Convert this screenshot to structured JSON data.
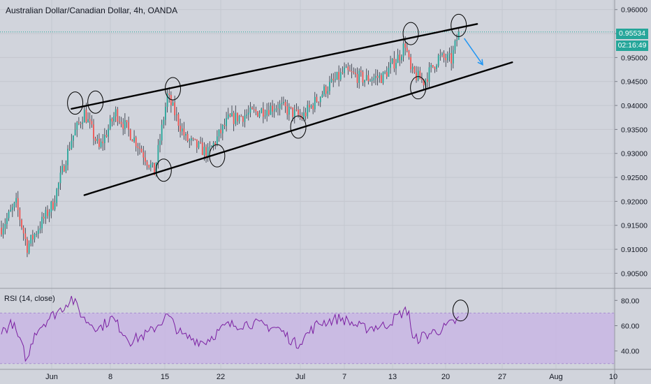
{
  "header": {
    "title": "Australian Dollar/Canadian Dollar, 4h, OANDA"
  },
  "price_badge": {
    "value": "0.95534",
    "color": "#26a69a"
  },
  "countdown_badge": {
    "value": "02:16:49",
    "color": "#26a69a"
  },
  "rsi_panel": {
    "title": "RSI (14, close)"
  },
  "colors": {
    "background": "#d1d4dc",
    "up_candle": "#26a69a",
    "down_candle": "#ef5350",
    "rsi_line": "#7b1fa2",
    "rsi_band": "#c9b6e4",
    "annotation": "#000000",
    "arrow": "#2196f3"
  },
  "chart_data": [
    {
      "type": "candlestick",
      "title": "Australian Dollar/Canadian Dollar, 4h, OANDA",
      "y_ticks": [
        "0.96000",
        "0.95500",
        "0.95000",
        "0.94500",
        "0.94000",
        "0.93500",
        "0.93000",
        "0.92500",
        "0.92000",
        "0.91500",
        "0.91000",
        "0.90500"
      ],
      "ylim": [
        0.902,
        0.962
      ],
      "x_ticks": [
        "Jun",
        "8",
        "15",
        "22",
        "Jul",
        "7",
        "13",
        "20",
        "27",
        "Aug",
        "10"
      ],
      "last_price": 0.95534,
      "grid": true,
      "anchors": [
        {
          "bar": 0,
          "close": 0.9145
        },
        {
          "bar": 8,
          "close": 0.9195
        },
        {
          "bar": 14,
          "close": 0.9105
        },
        {
          "bar": 20,
          "close": 0.9145
        },
        {
          "bar": 28,
          "close": 0.9195
        },
        {
          "bar": 38,
          "close": 0.933
        },
        {
          "bar": 45,
          "close": 0.9385
        },
        {
          "bar": 53,
          "close": 0.931
        },
        {
          "bar": 62,
          "close": 0.9385
        },
        {
          "bar": 73,
          "close": 0.9325
        },
        {
          "bar": 83,
          "close": 0.926
        },
        {
          "bar": 90,
          "close": 0.942
        },
        {
          "bar": 100,
          "close": 0.933
        },
        {
          "bar": 112,
          "close": 0.93
        },
        {
          "bar": 123,
          "close": 0.937
        },
        {
          "bar": 137,
          "close": 0.9385
        },
        {
          "bar": 150,
          "close": 0.94
        },
        {
          "bar": 163,
          "close": 0.9375
        },
        {
          "bar": 176,
          "close": 0.9435
        },
        {
          "bar": 186,
          "close": 0.947
        },
        {
          "bar": 197,
          "close": 0.9455
        },
        {
          "bar": 207,
          "close": 0.946
        },
        {
          "bar": 216,
          "close": 0.9505
        },
        {
          "bar": 219,
          "close": 0.953
        },
        {
          "bar": 222,
          "close": 0.947
        },
        {
          "bar": 229,
          "close": 0.945
        },
        {
          "bar": 237,
          "close": 0.95
        },
        {
          "bar": 244,
          "close": 0.9495
        },
        {
          "bar": 248,
          "close": 0.9553
        }
      ],
      "trendlines": [
        {
          "name": "upper",
          "from": {
            "bar": 38,
            "price": 0.9393
          },
          "to": {
            "bar": 258,
            "price": 0.957
          }
        },
        {
          "name": "lower",
          "from": {
            "bar": 45,
            "price": 0.9213
          },
          "to": {
            "bar": 277,
            "price": 0.949
          }
        }
      ],
      "annotations": {
        "circles": [
          {
            "bar": 40,
            "price": 0.9405
          },
          {
            "bar": 51,
            "price": 0.9407
          },
          {
            "bar": 93,
            "price": 0.9435
          },
          {
            "bar": 88,
            "price": 0.9265
          },
          {
            "bar": 117,
            "price": 0.9295
          },
          {
            "bar": 161,
            "price": 0.9355
          },
          {
            "bar": 222,
            "price": 0.955
          },
          {
            "bar": 226,
            "price": 0.9437
          },
          {
            "bar": 248,
            "price": 0.9567
          }
        ],
        "arrow": {
          "from": {
            "bar": 251,
            "price": 0.954
          },
          "to": {
            "bar": 261,
            "price": 0.9485
          }
        }
      }
    },
    {
      "type": "line",
      "title": "RSI (14, close)",
      "y_ticks": [
        "80.00",
        "60.00",
        "40.00"
      ],
      "ylim": [
        26,
        89
      ],
      "band": [
        30,
        70
      ],
      "anchors": [
        {
          "bar": 0,
          "value": 55
        },
        {
          "bar": 6,
          "value": 62
        },
        {
          "bar": 12,
          "value": 40
        },
        {
          "bar": 14,
          "value": 32
        },
        {
          "bar": 18,
          "value": 55
        },
        {
          "bar": 25,
          "value": 65
        },
        {
          "bar": 33,
          "value": 74
        },
        {
          "bar": 38,
          "value": 82
        },
        {
          "bar": 45,
          "value": 65
        },
        {
          "bar": 53,
          "value": 58
        },
        {
          "bar": 60,
          "value": 66
        },
        {
          "bar": 70,
          "value": 48
        },
        {
          "bar": 80,
          "value": 54
        },
        {
          "bar": 90,
          "value": 68
        },
        {
          "bar": 98,
          "value": 52
        },
        {
          "bar": 110,
          "value": 47
        },
        {
          "bar": 122,
          "value": 60
        },
        {
          "bar": 135,
          "value": 62
        },
        {
          "bar": 150,
          "value": 58
        },
        {
          "bar": 160,
          "value": 45
        },
        {
          "bar": 172,
          "value": 62
        },
        {
          "bar": 184,
          "value": 66
        },
        {
          "bar": 196,
          "value": 58
        },
        {
          "bar": 208,
          "value": 60
        },
        {
          "bar": 218,
          "value": 71
        },
        {
          "bar": 221,
          "value": 72
        },
        {
          "bar": 223,
          "value": 48
        },
        {
          "bar": 229,
          "value": 52
        },
        {
          "bar": 240,
          "value": 58
        },
        {
          "bar": 248,
          "value": 65
        }
      ],
      "annotations": {
        "circles": [
          {
            "bar": 249,
            "value": 72
          }
        ]
      }
    }
  ]
}
